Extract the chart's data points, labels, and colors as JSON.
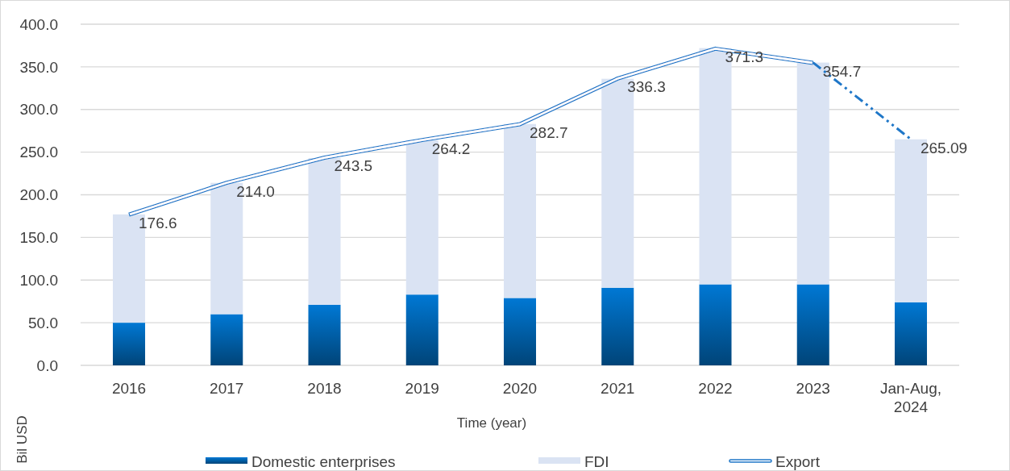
{
  "chart_data": {
    "type": "bar",
    "stacked": true,
    "xlabel": "Time (year)",
    "ylabel": "Bil USD",
    "categories": [
      "2016",
      "2017",
      "2018",
      "2019",
      "2020",
      "2021",
      "2022",
      "2023",
      "Jan-Aug, 2024"
    ],
    "ylim": [
      0,
      400
    ],
    "yticks": [
      {
        "value": 0,
        "label": "0.0"
      },
      {
        "value": 50,
        "label": "50.0"
      },
      {
        "value": 100,
        "label": "100.0"
      },
      {
        "value": 150,
        "label": "150.0"
      },
      {
        "value": 200,
        "label": "200.0"
      },
      {
        "value": 250,
        "label": "250.0"
      },
      {
        "value": 300,
        "label": "300.0"
      },
      {
        "value": 350,
        "label": "350.0"
      },
      {
        "value": 400,
        "label": "400.0"
      }
    ],
    "grid": "y",
    "legend": "bottom",
    "series": [
      {
        "name": "Domestic enterprises",
        "color": "#0078d4",
        "values": [
          50,
          60,
          71,
          83,
          79,
          91,
          95,
          95,
          74
        ]
      },
      {
        "name": "FDI",
        "color": "#dae3f3",
        "values": [
          127,
          154,
          172,
          181,
          204,
          245,
          277,
          260,
          191
        ]
      },
      {
        "name": "Export",
        "type": "line",
        "color": "#1f77c8",
        "line_style": "solid",
        "marker": "none",
        "values": [
          176.6,
          214.0,
          243.5,
          264.2,
          282.7,
          336.3,
          371.3,
          354.7,
          null
        ],
        "value_labels": [
          "176.6",
          "214.0",
          "243.5",
          "264.2",
          "282.7",
          "336.3",
          "371.3",
          "354.7",
          null
        ]
      },
      {
        "type": "line",
        "color": "#1f77c8",
        "line_style": "dashed",
        "marker": "none",
        "values": [
          null,
          null,
          null,
          null,
          null,
          null,
          null,
          355,
          265.09
        ],
        "value_labels": [
          null,
          null,
          null,
          null,
          null,
          null,
          null,
          null,
          "265.09"
        ]
      }
    ]
  }
}
